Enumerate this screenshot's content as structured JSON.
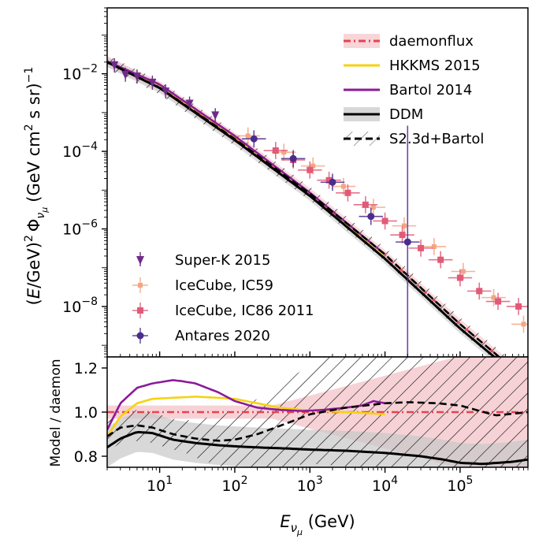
{
  "chart_data": [
    {
      "type": "line",
      "ylabel_prefix": "(E/GeV)",
      "ylabel_prefix_sup": "2",
      "ylabel_phi": "Φ",
      "ylabel_phi_sub": "ν",
      "ylabel_phi_subsub": "μ",
      "ylabel_units": "(GeV cm",
      "ylabel_units_sup": "2",
      "ylabel_units_tail": " s sr)",
      "ylabel_units_exp": "−1",
      "xscale": "log",
      "yscale": "log",
      "xlim": [
        2,
        800000
      ],
      "ylim": [
        5e-10,
        0.5
      ],
      "yticks": [
        {
          "value": 0.01,
          "mant": "10",
          "exp": "−2"
        },
        {
          "value": 0.0001,
          "mant": "10",
          "exp": "−4"
        },
        {
          "value": 1e-06,
          "mant": "10",
          "exp": "−6"
        },
        {
          "value": 1e-08,
          "mant": "10",
          "exp": "−8"
        }
      ],
      "series": [
        {
          "name": "daemonflux",
          "color": "#e8424f",
          "style": "dashdot",
          "band": true,
          "x": [
            2,
            10,
            100,
            1000,
            10000,
            100000,
            800000
          ],
          "y": [
            0.021,
            0.0047,
            0.000226,
            8.4e-06,
            2.1e-07,
            3.5e-09,
            1.2e-10
          ]
        },
        {
          "name": "HKKMS 2015",
          "color": "#f6d20f",
          "style": "solid",
          "x": [
            2,
            10,
            100,
            1000,
            10000
          ],
          "y": [
            0.021,
            0.0052,
            0.00024,
            8.5e-06,
            2.1e-07
          ]
        },
        {
          "name": "Bartol 2014",
          "color": "#8b1a9a",
          "style": "solid",
          "x": [
            2,
            10,
            100,
            1000,
            10000
          ],
          "y": [
            0.021,
            0.0053,
            0.00025,
            8.6e-06,
            2.2e-07
          ]
        },
        {
          "name": "DDM",
          "color": "#000000",
          "style": "solid",
          "band": true,
          "x": [
            2,
            10,
            100,
            1000,
            10000,
            100000,
            800000
          ],
          "y": [
            0.02,
            0.0043,
            0.000195,
            7.1e-06,
            1.7e-07,
            2.7e-09,
            9.5e-11
          ]
        },
        {
          "name": "S2.3d+Bartol",
          "color": "#000000",
          "style": "dashed",
          "hatched": true,
          "x": [
            2,
            10,
            100,
            1000,
            10000,
            100000,
            800000
          ],
          "y": [
            0.02,
            0.0044,
            0.00021,
            8.2e-06,
            2.2e-07,
            3.5e-09,
            1.2e-10
          ]
        }
      ],
      "data_sets": [
        {
          "name": "Super-K 2015",
          "color": "#6e2c86",
          "marker": "triangle-down",
          "points": [
            {
              "x": 2.5,
              "y": 0.0165
            },
            {
              "x": 3.5,
              "y": 0.0095
            },
            {
              "x": 5,
              "y": 0.0085
            },
            {
              "x": 8,
              "y": 0.0059
            },
            {
              "x": 12,
              "y": 0.0035
            },
            {
              "x": 25,
              "y": 0.0017
            },
            {
              "x": 55,
              "y": 0.00085
            }
          ]
        },
        {
          "name": "IceCube, IC59",
          "color": "#f4a582",
          "marker": "cross",
          "points": [
            {
              "x": 150,
              "y": 0.00025
            },
            {
              "x": 450,
              "y": 9.5e-05
            },
            {
              "x": 1100,
              "y": 4.2e-05
            },
            {
              "x": 2800,
              "y": 1.25e-05
            },
            {
              "x": 7000,
              "y": 3.6e-06
            },
            {
              "x": 18000,
              "y": 1.2e-06
            },
            {
              "x": 45000,
              "y": 3.5e-07
            },
            {
              "x": 110000,
              "y": 8e-08
            },
            {
              "x": 280000,
              "y": 1.7e-08
            },
            {
              "x": 700000,
              "y": 3.5e-09
            }
          ]
        },
        {
          "name": "IceCube, IC86 2011",
          "color": "#e15a77",
          "marker": "square",
          "points": [
            {
              "x": 350,
              "y": 0.000105
            },
            {
              "x": 600,
              "y": 6e-05
            },
            {
              "x": 1000,
              "y": 3.3e-05
            },
            {
              "x": 1800,
              "y": 1.8e-05
            },
            {
              "x": 3200,
              "y": 8.5e-06
            },
            {
              "x": 5500,
              "y": 4.2e-06
            },
            {
              "x": 10000,
              "y": 1.6e-06
            },
            {
              "x": 17000,
              "y": 7e-07
            },
            {
              "x": 30000,
              "y": 3.2e-07
            },
            {
              "x": 55000,
              "y": 1.6e-07
            },
            {
              "x": 100000,
              "y": 5.5e-08
            },
            {
              "x": 180000,
              "y": 2.5e-08
            },
            {
              "x": 320000,
              "y": 1.35e-08
            },
            {
              "x": 600000,
              "y": 1e-08
            }
          ]
        },
        {
          "name": "Antares 2020",
          "color": "#4b2c8c",
          "marker": "circle",
          "points": [
            {
              "x": 180,
              "y": 0.00021
            },
            {
              "x": 600,
              "y": 6.5e-05
            },
            {
              "x": 2000,
              "y": 1.6e-05
            },
            {
              "x": 6500,
              "y": 2.1e-06
            },
            {
              "x": 20000,
              "y": 4.6e-07
            }
          ]
        }
      ],
      "legend_top_right": [
        "daemonflux",
        "HKKMS 2015",
        "Bartol 2014",
        "DDM",
        "S2.3d+Bartol"
      ],
      "legend_bottom_left": [
        "Super-K 2015",
        "IceCube, IC59",
        "IceCube, IC86 2011",
        "Antares 2020"
      ]
    },
    {
      "type": "line",
      "ylabel": "Model / daemon",
      "xlabel_main": "E",
      "xlabel_sub": "ν",
      "xlabel_subsub": "μ",
      "xlabel_units": " (GeV)",
      "xscale": "log",
      "xlim": [
        2,
        800000
      ],
      "ylim": [
        0.75,
        1.25
      ],
      "yticks": [
        {
          "value": 0.8,
          "label": "0.8"
        },
        {
          "value": 1.0,
          "label": "1.0"
        },
        {
          "value": 1.2,
          "label": "1.2"
        }
      ],
      "xticks": [
        {
          "value": 10,
          "mant": "10",
          "exp": "1"
        },
        {
          "value": 100,
          "mant": "10",
          "exp": "2"
        },
        {
          "value": 1000,
          "mant": "10",
          "exp": "3"
        },
        {
          "value": 10000,
          "mant": "10",
          "exp": "4"
        },
        {
          "value": 100000,
          "mant": "10",
          "exp": "5"
        }
      ],
      "series": [
        {
          "name": "daemonflux",
          "color": "#e8424f",
          "style": "dashdot",
          "x": [
            2,
            800000
          ],
          "y": [
            1.0,
            1.0
          ]
        },
        {
          "name": "HKKMS 2015",
          "color": "#f6d20f",
          "style": "solid",
          "x": [
            2,
            3,
            5,
            8,
            15,
            30,
            60,
            100,
            200,
            400,
            800,
            1500,
            3000,
            6000,
            10000
          ],
          "y": [
            0.89,
            0.98,
            1.04,
            1.06,
            1.065,
            1.07,
            1.065,
            1.06,
            1.04,
            1.02,
            1.01,
            1.005,
            1.0,
            0.995,
            0.99
          ]
        },
        {
          "name": "Bartol 2014",
          "color": "#8b1a9a",
          "style": "solid",
          "x": [
            2,
            3,
            5,
            8,
            15,
            20,
            30,
            60,
            100,
            200,
            400,
            800,
            1500,
            3000,
            5000,
            7000,
            10000
          ],
          "y": [
            0.92,
            1.04,
            1.11,
            1.13,
            1.145,
            1.14,
            1.13,
            1.09,
            1.05,
            1.02,
            1.01,
            1.005,
            1.01,
            1.02,
            1.03,
            1.05,
            1.04
          ]
        },
        {
          "name": "DDM",
          "color": "#000000",
          "style": "solid",
          "x": [
            2,
            3,
            5,
            8,
            15,
            30,
            60,
            100,
            200,
            500,
            1000,
            3000,
            10000,
            30000,
            60000,
            100000,
            200000,
            500000,
            800000
          ],
          "y": [
            0.84,
            0.88,
            0.91,
            0.905,
            0.875,
            0.86,
            0.85,
            0.845,
            0.84,
            0.835,
            0.83,
            0.825,
            0.815,
            0.8,
            0.785,
            0.77,
            0.765,
            0.775,
            0.785
          ]
        },
        {
          "name": "S2.3d+Bartol",
          "color": "#000000",
          "style": "dashed",
          "x": [
            2,
            3,
            5,
            8,
            15,
            30,
            60,
            100,
            200,
            500,
            1000,
            3000,
            10000,
            20000,
            50000,
            100000,
            300000,
            800000
          ],
          "y": [
            0.89,
            0.93,
            0.94,
            0.93,
            0.9,
            0.88,
            0.87,
            0.875,
            0.9,
            0.95,
            0.99,
            1.02,
            1.04,
            1.045,
            1.04,
            1.03,
            0.985,
            1.0
          ]
        }
      ]
    }
  ]
}
